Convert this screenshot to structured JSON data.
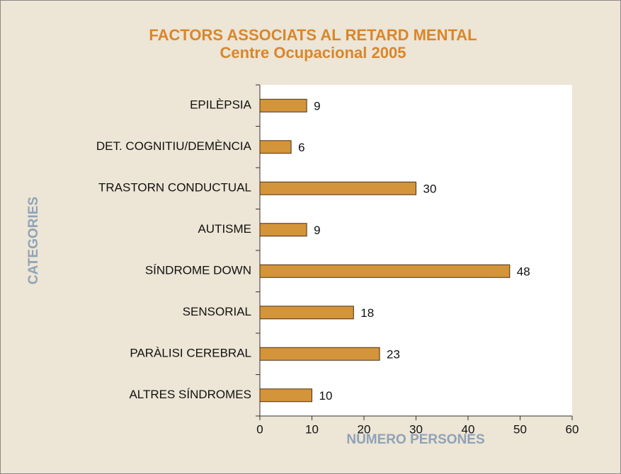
{
  "chart_data": {
    "type": "bar",
    "orientation": "horizontal",
    "title": "FACTORS ASSOCIATS AL RETARD MENTAL",
    "subtitle": "Centre Ocupacional 2005",
    "x_label": "NÚMERO PERSONES",
    "y_label": "CATEGORIES",
    "categories": [
      "EPILÈPSIA",
      "DET. COGNITIU/DEMÈNCIA",
      "TRASTORN CONDUCTUAL",
      "AUTISME",
      "SÍNDROME DOWN",
      "SENSORIAL",
      "PARÀLISI CEREBRAL",
      "ALTRES SÍNDROMES"
    ],
    "values": [
      9,
      6,
      30,
      9,
      48,
      18,
      23,
      10
    ],
    "color": "#d4943a",
    "xlim": [
      0,
      60
    ],
    "xticks": [
      0,
      10,
      20,
      30,
      40,
      50,
      60
    ]
  }
}
